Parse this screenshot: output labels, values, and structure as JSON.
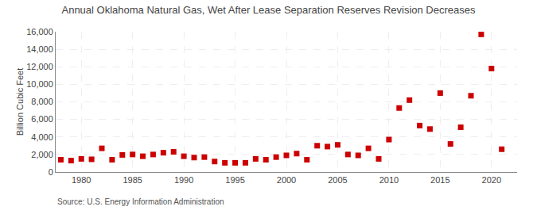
{
  "chart_data": {
    "type": "scatter",
    "title": "Annual Oklahoma Natural Gas, Wet After Lease Separation Reserves Revision Decreases",
    "ylabel": "Billion Cubic Feet",
    "annotations": [
      "Source: U.S. Energy Information Administration"
    ],
    "x": [
      1978,
      1979,
      1980,
      1981,
      1982,
      1983,
      1984,
      1985,
      1986,
      1987,
      1988,
      1989,
      1990,
      1991,
      1992,
      1993,
      1994,
      1995,
      1996,
      1997,
      1998,
      1999,
      2000,
      2001,
      2002,
      2003,
      2004,
      2005,
      2006,
      2007,
      2008,
      2009,
      2010,
      2011,
      2012,
      2013,
      2014,
      2015,
      2016,
      2017,
      2018,
      2019,
      2020,
      2021
    ],
    "values": [
      1400,
      1300,
      1500,
      1450,
      2700,
      1400,
      1950,
      2000,
      1800,
      2000,
      2200,
      2300,
      1800,
      1650,
      1700,
      1200,
      1050,
      1050,
      1050,
      1500,
      1400,
      1700,
      1900,
      2100,
      1400,
      3000,
      2900,
      3100,
      2000,
      1900,
      2700,
      1500,
      3700,
      7300,
      8200,
      5300,
      4900,
      9000,
      3200,
      5100,
      8700,
      15700,
      11800,
      2600
    ],
    "color": "#cc0000",
    "marker": "square",
    "xlim": [
      1977.5,
      2022.5
    ],
    "xticks": [
      1980,
      1985,
      1990,
      1995,
      2000,
      2005,
      2010,
      2015,
      2020
    ],
    "ylim": [
      0,
      16000
    ],
    "yticks": [
      0,
      {
        "value": 2000,
        "label": "2,000"
      },
      {
        "value": 4000,
        "label": "4,000"
      },
      {
        "value": 6000,
        "label": "6,000"
      },
      {
        "value": 8000,
        "label": "8,000"
      },
      {
        "value": 10000,
        "label": "10,000"
      },
      {
        "value": 12000,
        "label": "12,000"
      },
      {
        "value": 14000,
        "label": "14,000"
      },
      {
        "value": 16000,
        "label": "16,000"
      }
    ],
    "grid": true
  }
}
